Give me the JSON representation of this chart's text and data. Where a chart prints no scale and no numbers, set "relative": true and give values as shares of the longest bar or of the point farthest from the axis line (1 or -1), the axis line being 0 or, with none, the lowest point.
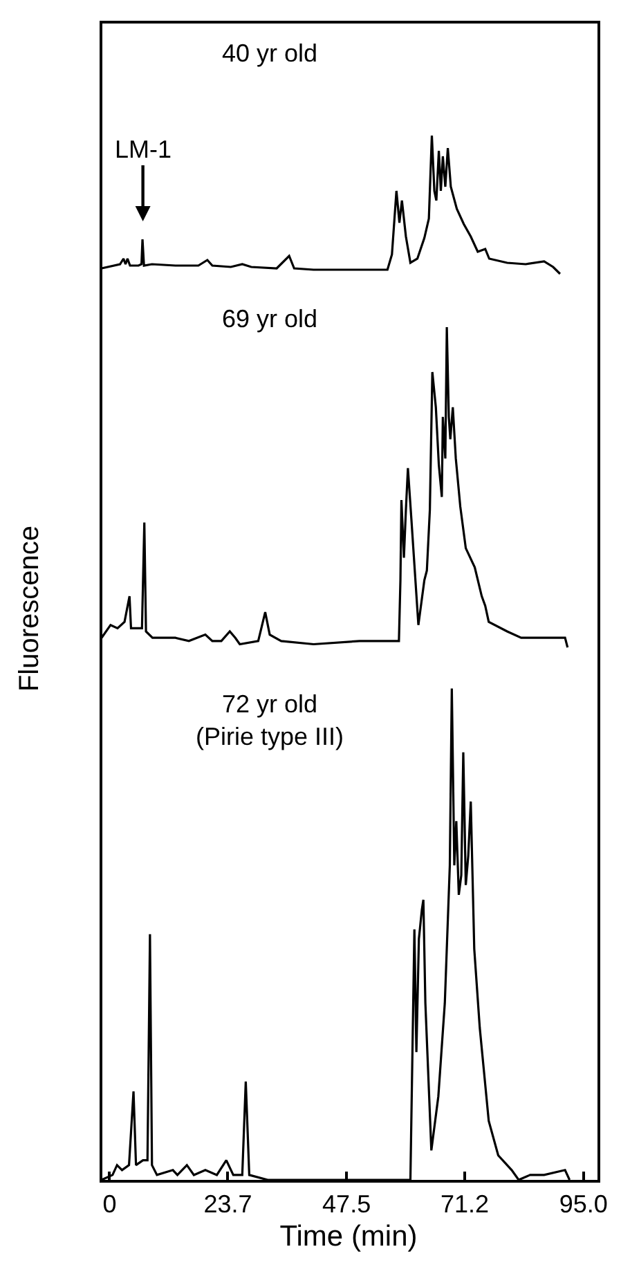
{
  "chart_data": [
    {
      "type": "line",
      "title": "40 yr old",
      "relative": true,
      "xlim": [
        -2,
        97.8
      ],
      "tick_labels": false,
      "annotations": [
        "LM-1"
      ],
      "series": [
        {
          "color": "#000000",
          "x": [
            -1.6,
            2.1,
            2.8,
            3.2,
            3.6,
            4.1,
            5.8,
            6.4,
            6.6,
            6.9,
            8.5,
            13.2,
            17.8,
            19.6,
            20.6,
            24.3,
            26.6,
            28.4,
            33.5,
            36.0,
            37.0,
            40.9,
            50.1,
            55.7,
            56.6,
            57.5,
            58.1,
            58.6,
            59.4,
            60.3,
            61.7,
            63.1,
            64.0,
            64.6,
            65.1,
            65.5,
            66.0,
            66.4,
            66.8,
            67.3,
            67.8,
            68.4,
            69.6,
            71.0,
            72.4,
            73.8,
            75.3,
            76.1,
            79.7,
            83.4,
            87.1,
            88.9,
            90.3
          ],
          "values": [
            0.04,
            0.07,
            0.11,
            0.07,
            0.11,
            0.06,
            0.06,
            0.07,
            0.25,
            0.06,
            0.07,
            0.06,
            0.06,
            0.1,
            0.06,
            0.05,
            0.07,
            0.05,
            0.04,
            0.13,
            0.04,
            0.03,
            0.03,
            0.03,
            0.14,
            0.6,
            0.37,
            0.53,
            0.27,
            0.08,
            0.11,
            0.26,
            0.4,
            1,
            0.6,
            0.53,
            0.89,
            0.6,
            0.85,
            0.63,
            0.91,
            0.63,
            0.47,
            0.36,
            0.27,
            0.16,
            0.18,
            0.11,
            0.08,
            0.07,
            0.09,
            0.05,
            0
          ]
        }
      ]
    },
    {
      "type": "line",
      "title": "69 yr old",
      "ylabel": "Fluorescence",
      "relative": true,
      "xlim": [
        -2,
        97.8
      ],
      "tick_labels": false,
      "series": [
        {
          "color": "#000000",
          "x": [
            -1.6,
            0.2,
            1.6,
            3.0,
            3.5,
            4.0,
            4.3,
            5.8,
            6.5,
            6.97,
            7.3,
            8.6,
            13.2,
            15.9,
            19.2,
            20.6,
            22.4,
            24.1,
            25.2,
            26.1,
            29.8,
            31.2,
            32.1,
            34.4,
            40.9,
            50.1,
            58.0,
            58.3,
            58.5,
            59.0,
            59.4,
            59.8,
            60.5,
            61.9,
            63.1,
            63.6,
            64.2,
            64.7,
            65.4,
            66.0,
            66.6,
            66.8,
            67.3,
            67.6,
            68.0,
            68.3,
            68.8,
            69.4,
            70.3,
            71.4,
            73.2,
            74.6,
            75.3,
            76.0,
            79.7,
            82.5,
            87.1,
            91.3,
            91.8
          ],
          "values": [
            0.03,
            0.07,
            0.06,
            0.08,
            0.12,
            0.16,
            0.06,
            0.06,
            0.06,
            0.39,
            0.05,
            0.03,
            0.03,
            0.02,
            0.04,
            0.02,
            0.02,
            0.05,
            0.03,
            0.01,
            0.02,
            0.11,
            0.04,
            0.02,
            0.01,
            0.02,
            0.02,
            0.21,
            0.46,
            0.28,
            0.43,
            0.56,
            0.4,
            0.07,
            0.21,
            0.24,
            0.43,
            0.86,
            0.75,
            0.57,
            0.47,
            0.72,
            0.59,
            1,
            0.72,
            0.65,
            0.75,
            0.59,
            0.44,
            0.31,
            0.25,
            0.16,
            0.13,
            0.08,
            0.05,
            0.03,
            0.03,
            0.03,
            0
          ]
        }
      ]
    },
    {
      "type": "line",
      "title": "72 yr old\n(Pirie type III)",
      "xlabel": "Time (min)",
      "relative": true,
      "xlim": [
        -2,
        97.8
      ],
      "xticks": [
        0,
        23.7,
        47.5,
        71.2,
        {
          "value": 95,
          "label": "95.0"
        }
      ],
      "tick_labels": "x",
      "series": [
        {
          "color": "#000000",
          "x": [
            -1.6,
            0.6,
            1.5,
            2.5,
            3.9,
            4.8,
            5.3,
            6.7,
            7.6,
            8.1,
            8.5,
            9.5,
            12.7,
            13.6,
            15.5,
            16.9,
            19.2,
            21.5,
            23.4,
            24.8,
            26.6,
            27.3,
            28.0,
            31.7,
            40.9,
            50.1,
            59.4,
            60.3,
            61.1,
            61.5,
            62.0,
            62.6,
            62.9,
            63.3,
            64.5,
            65.9,
            67.2,
            68.2,
            68.6,
            69.1,
            69.5,
            70.0,
            70.5,
            70.9,
            71.4,
            71.9,
            72.4,
            73.1,
            74.2,
            76.0,
            77.9,
            80.6,
            82.0,
            84.3,
            87.1,
            91.3,
            92.2
          ],
          "values": [
            0,
            0.01,
            0.03,
            0.02,
            0.03,
            0.18,
            0.03,
            0.04,
            0.04,
            0.5,
            0.03,
            0.01,
            0.02,
            0.01,
            0.03,
            0.01,
            0.02,
            0.01,
            0.04,
            0.01,
            0.01,
            0.2,
            0.01,
            0,
            0,
            0,
            0,
            0,
            0.51,
            0.26,
            0.49,
            0.55,
            0.57,
            0.36,
            0.06,
            0.17,
            0.36,
            0.64,
            1,
            0.64,
            0.73,
            0.58,
            0.62,
            0.87,
            0.6,
            0.66,
            0.77,
            0.47,
            0.31,
            0.12,
            0.05,
            0.02,
            0,
            0.01,
            0.01,
            0.02,
            0
          ]
        }
      ]
    }
  ]
}
